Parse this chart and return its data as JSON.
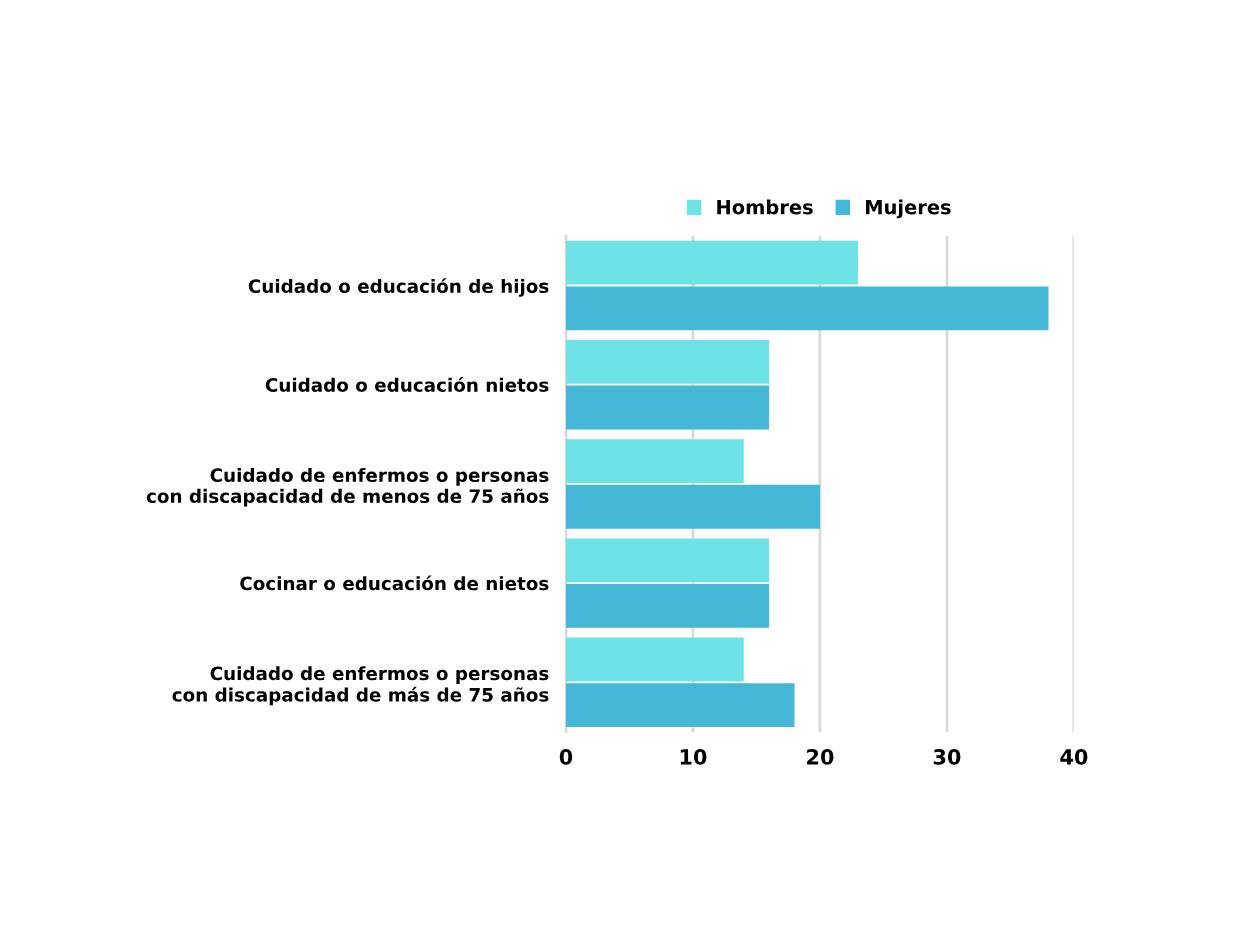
{
  "chart_data": {
    "type": "bar",
    "orientation": "horizontal",
    "categories": [
      "Cuidado o educación de hijos",
      "Cuidado o educación nietos",
      "Cuidado de enfermos o personas\ncon discapacidad de menos de 75 años",
      "Cocinar o educación de nietos",
      "Cuidado de enfermos o personas\ncon discapacidad de más de 75 años"
    ],
    "series": [
      {
        "name": "Hombres",
        "color": "#6de3e8",
        "values": [
          23,
          16,
          14,
          16,
          14
        ]
      },
      {
        "name": "Mujeres",
        "color": "#45b8d8",
        "values": [
          38,
          16,
          20,
          16,
          18
        ]
      }
    ],
    "xlim": [
      0,
      40
    ],
    "xticks": [
      0,
      10,
      20,
      30,
      40
    ],
    "grid": "x",
    "legend": "top"
  }
}
